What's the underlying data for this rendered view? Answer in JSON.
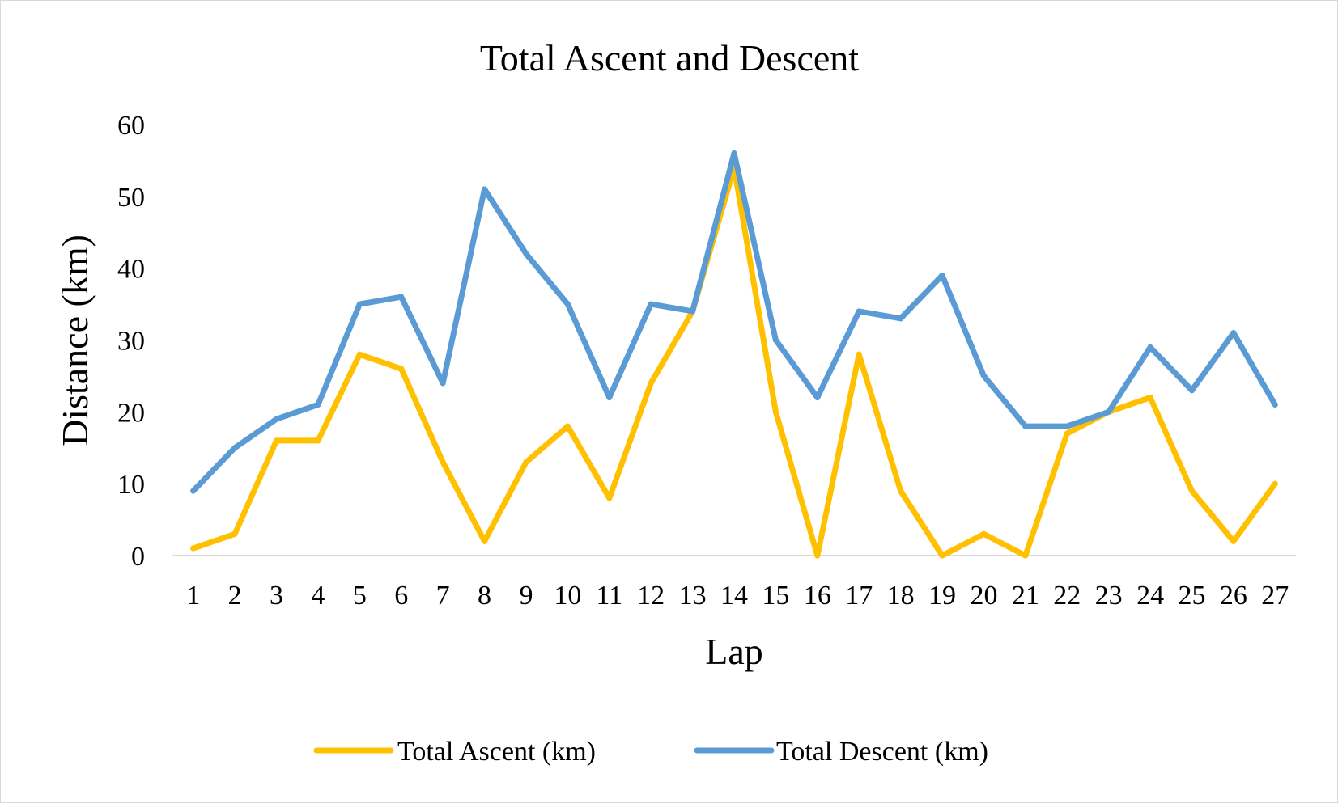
{
  "colors": {
    "ascent": "#FFC000",
    "descent": "#5B9BD5",
    "axis": "#d9d9d9",
    "frame": "#d9d9d9"
  },
  "chart_data": {
    "type": "line",
    "title": "Total Ascent and Descent",
    "xlabel": "Lap",
    "ylabel": "Distance (km)",
    "ylim": [
      0,
      60
    ],
    "yticks": [
      "0",
      "10",
      "20",
      "30",
      "40",
      "50",
      "60"
    ],
    "grid": false,
    "legend_position": "bottom",
    "categories": [
      "1",
      "2",
      "3",
      "4",
      "5",
      "6",
      "7",
      "8",
      "9",
      "10",
      "11",
      "12",
      "13",
      "14",
      "15",
      "16",
      "17",
      "18",
      "19",
      "20",
      "21",
      "22",
      "23",
      "24",
      "25",
      "26",
      "27"
    ],
    "series": [
      {
        "name": "Total Ascent (km)",
        "color": "#FFC000",
        "values": [
          1,
          3,
          16,
          16,
          28,
          26,
          13,
          2,
          13,
          18,
          8,
          24,
          34,
          54,
          20,
          0,
          28,
          9,
          0,
          3,
          0,
          17,
          20,
          22,
          9,
          2,
          10
        ]
      },
      {
        "name": "Total Descent (km)",
        "color": "#5B9BD5",
        "values": [
          9,
          15,
          19,
          21,
          35,
          36,
          24,
          51,
          42,
          35,
          22,
          35,
          34,
          56,
          30,
          22,
          34,
          33,
          39,
          25,
          18,
          18,
          20,
          29,
          23,
          31,
          21
        ]
      }
    ]
  }
}
